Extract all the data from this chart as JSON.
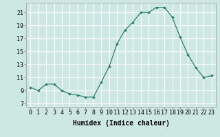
{
  "x": [
    0,
    1,
    2,
    3,
    4,
    5,
    6,
    7,
    8,
    9,
    10,
    11,
    12,
    13,
    14,
    15,
    16,
    17,
    18,
    19,
    20,
    21,
    22,
    23
  ],
  "y": [
    9.5,
    9.0,
    10.0,
    10.0,
    9.0,
    8.5,
    8.3,
    8.0,
    8.0,
    10.3,
    12.7,
    16.2,
    18.3,
    19.5,
    21.0,
    21.0,
    21.8,
    21.8,
    20.3,
    17.2,
    14.5,
    12.5,
    11.0,
    11.3
  ],
  "line_color": "#2e7d6e",
  "marker": "D",
  "markersize": 1.8,
  "linewidth": 0.9,
  "bg_color": "#cde8e2",
  "grid_color": "#ffffff",
  "xlabel": "Humidex (Indice chaleur)",
  "xlabel_fontsize": 7,
  "tick_fontsize": 6,
  "yticks": [
    7,
    9,
    11,
    13,
    15,
    17,
    19,
    21
  ],
  "ylim": [
    6.5,
    22.5
  ],
  "xlim": [
    -0.5,
    23.5
  ]
}
